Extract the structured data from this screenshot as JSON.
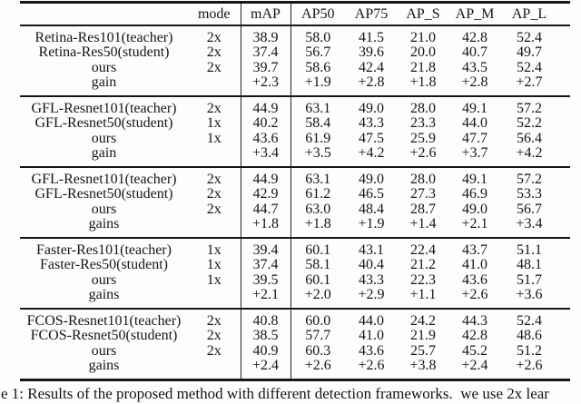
{
  "page": {
    "background": "#fdfdfd",
    "text_color": "#161616",
    "rule_color": "#161616"
  },
  "table": {
    "columns": [
      "mode",
      "mAP",
      "AP50",
      "AP75",
      "AP_S",
      "AP_M",
      "AP_L"
    ],
    "sections": [
      {
        "rows": [
          {
            "label": "Retina-Res101(teacher)",
            "mode": "2x",
            "values": [
              "38.9",
              "58.0",
              "41.5",
              "21.0",
              "42.8",
              "52.4"
            ]
          },
          {
            "label": "Retina-Res50(student)",
            "mode": "2x",
            "values": [
              "37.4",
              "56.7",
              "39.6",
              "20.0",
              "40.7",
              "49.7"
            ]
          },
          {
            "label": "ours",
            "mode": "2x",
            "values": [
              "39.7",
              "58.6",
              "42.4",
              "21.8",
              "43.5",
              "52.4"
            ]
          },
          {
            "label": "gain",
            "mode": "",
            "values": [
              "+2.3",
              "+1.9",
              "+2.8",
              "+1.8",
              "+2.8",
              "+2.7"
            ]
          }
        ]
      },
      {
        "rows": [
          {
            "label": "GFL-Resnet101(teacher)",
            "mode": "2x",
            "values": [
              "44.9",
              "63.1",
              "49.0",
              "28.0",
              "49.1",
              "57.2"
            ]
          },
          {
            "label": "GFL-Resnet50(student)",
            "mode": "1x",
            "values": [
              "40.2",
              "58.4",
              "43.3",
              "23.3",
              "44.0",
              "52.2"
            ]
          },
          {
            "label": "ours",
            "mode": "1x",
            "values": [
              "43.6",
              "61.9",
              "47.5",
              "25.9",
              "47.7",
              "56.4"
            ]
          },
          {
            "label": "gain",
            "mode": "",
            "values": [
              "+3.4",
              "+3.5",
              "+4.2",
              "+2.6",
              "+3.7",
              "+4.2"
            ]
          }
        ]
      },
      {
        "rows": [
          {
            "label": "GFL-Resnet101(teacher)",
            "mode": "2x",
            "values": [
              "44.9",
              "63.1",
              "49.0",
              "28.0",
              "49.1",
              "57.2"
            ]
          },
          {
            "label": "GFL-Resnet50(student)",
            "mode": "2x",
            "values": [
              "42.9",
              "61.2",
              "46.5",
              "27.3",
              "46.9",
              "53.3"
            ]
          },
          {
            "label": "ours",
            "mode": "2x",
            "values": [
              "44.7",
              "63.0",
              "48.4",
              "28.7",
              "49.0",
              "56.7"
            ]
          },
          {
            "label": "gains",
            "mode": "",
            "values": [
              "+1.8",
              "+1.8",
              "+1.9",
              "+1.4",
              "+2.1",
              "+3.4"
            ]
          }
        ]
      },
      {
        "rows": [
          {
            "label": "Faster-Res101(teacher)",
            "mode": "1x",
            "values": [
              "39.4",
              "60.1",
              "43.1",
              "22.4",
              "43.7",
              "51.1"
            ]
          },
          {
            "label": "Faster-Res50(student)",
            "mode": "1x",
            "values": [
              "37.4",
              "58.1",
              "40.4",
              "21.2",
              "41.0",
              "48.1"
            ]
          },
          {
            "label": "ours",
            "mode": "1x",
            "values": [
              "39.5",
              "60.1",
              "43.3",
              "22.3",
              "43.6",
              "51.7"
            ]
          },
          {
            "label": "gains",
            "mode": "",
            "values": [
              "+2.1",
              "+2.0",
              "+2.9",
              "+1.1",
              "+2.6",
              "+3.6"
            ]
          }
        ]
      },
      {
        "rows": [
          {
            "label": "FCOS-Resnet101(teacher)",
            "mode": "2x",
            "values": [
              "40.8",
              "60.0",
              "44.0",
              "24.2",
              "44.3",
              "52.4"
            ]
          },
          {
            "label": "FCOS-Resnet50(student)",
            "mode": "2x",
            "values": [
              "38.5",
              "57.7",
              "41.0",
              "21.9",
              "42.8",
              "48.6"
            ]
          },
          {
            "label": "ours",
            "mode": "2x",
            "values": [
              "40.9",
              "60.3",
              "43.6",
              "25.7",
              "45.2",
              "51.2"
            ]
          },
          {
            "label": "gains",
            "mode": "",
            "values": [
              "+2.4",
              "+2.6",
              "+2.6",
              "+3.8",
              "+2.4",
              "+2.6"
            ]
          }
        ]
      }
    ]
  },
  "caption": "e 1: Results of the proposed method with different detection frameworks.  we use 2x lear"
}
